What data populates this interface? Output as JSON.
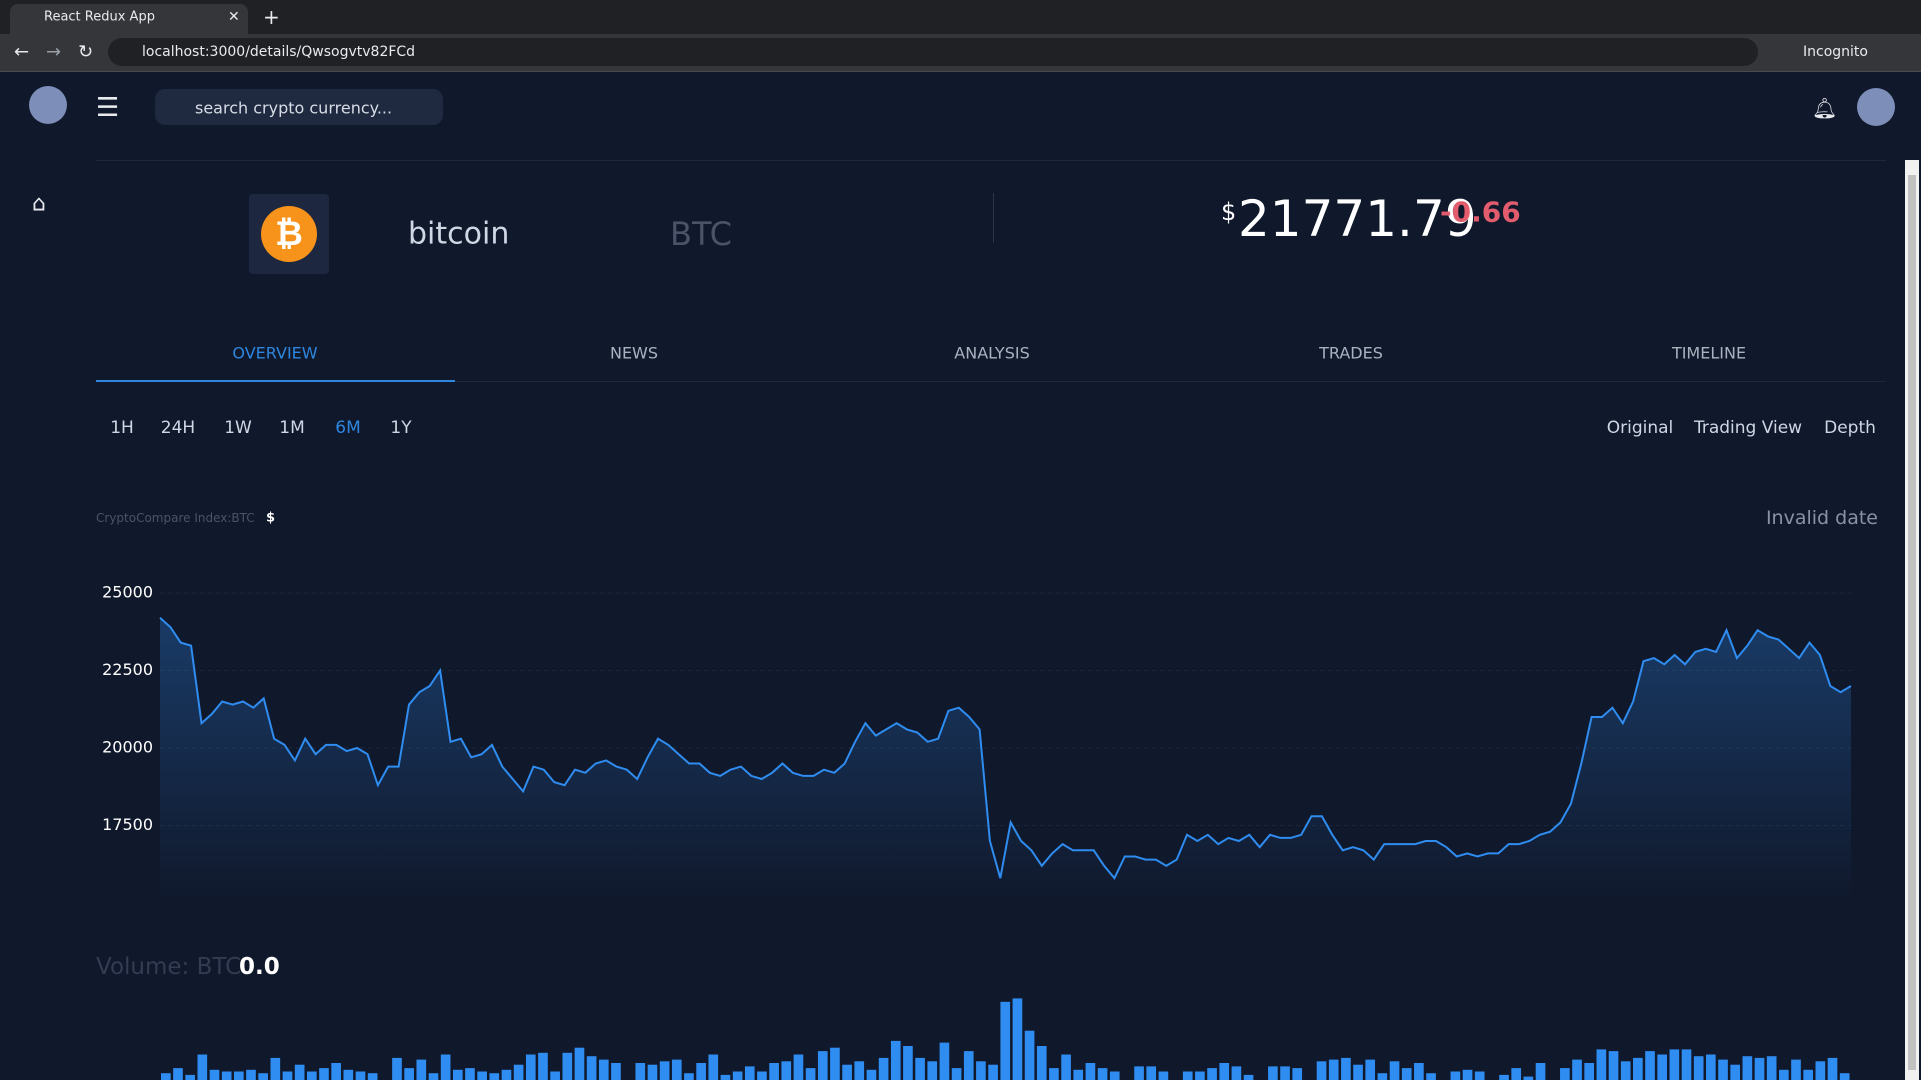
{
  "browser": {
    "tab_title": "React Redux App",
    "url": "localhost:3000/details/Qwsogvtv82FCd",
    "profile": "Incognito"
  },
  "header": {
    "search_placeholder": "search crypto currency..."
  },
  "coin": {
    "name": "bitcoin",
    "symbol": "BTC",
    "currency_sign": "$",
    "price": "21771.79",
    "change": "-0.66"
  },
  "tabs": [
    "OVERVIEW",
    "NEWS",
    "ANALYSIS",
    "TRADES",
    "TIMELINE"
  ],
  "ranges": [
    "1H",
    "24H",
    "1W",
    "1M",
    "6M",
    "1Y"
  ],
  "views": [
    "Original",
    "Trading View",
    "Depth"
  ],
  "chart_info": {
    "source": "CryptoCompare Index:BTC",
    "currency": "$",
    "date": "Invalid date"
  },
  "volume_info": {
    "label": "Volume: BTC",
    "value": "0.0"
  },
  "chart_data": [
    {
      "type": "area",
      "color": "#2f8cf0",
      "ylim": [
        15000,
        26000
      ],
      "yticks": [
        17500,
        20000,
        22500,
        25000
      ],
      "values": [
        24200,
        23900,
        23400,
        23300,
        20800,
        21100,
        21500,
        21400,
        21500,
        21300,
        21600,
        20300,
        20100,
        19600,
        20300,
        19800,
        20100,
        20100,
        19900,
        20000,
        19800,
        18800,
        19400,
        19400,
        21400,
        21800,
        22000,
        22500,
        20200,
        20300,
        19700,
        19800,
        20100,
        19400,
        19000,
        18600,
        19400,
        19300,
        18900,
        18800,
        19300,
        19200,
        19500,
        19600,
        19400,
        19300,
        19000,
        19700,
        20300,
        20100,
        19800,
        19500,
        19500,
        19200,
        19100,
        19300,
        19400,
        19100,
        19000,
        19200,
        19500,
        19200,
        19100,
        19100,
        19300,
        19200,
        19500,
        20200,
        20800,
        20400,
        20600,
        20800,
        20600,
        20500,
        20200,
        20300,
        21200,
        21300,
        21000,
        20600,
        17000,
        15800,
        17600,
        17000,
        16700,
        16200,
        16600,
        16900,
        16700,
        16700,
        16700,
        16200,
        15800,
        16500,
        16500,
        16400,
        16400,
        16200,
        16400,
        17200,
        17000,
        17200,
        16900,
        17100,
        17000,
        17200,
        16800,
        17200,
        17100,
        17100,
        17200,
        17800,
        17800,
        17200,
        16700,
        16800,
        16700,
        16400,
        16900,
        16900,
        16900,
        16900,
        17000,
        17000,
        16800,
        16500,
        16600,
        16500,
        16600,
        16600,
        16900,
        16900,
        17000,
        17200,
        17300,
        17600,
        18200,
        19500,
        21000,
        21000,
        21300,
        20800,
        21500,
        22800,
        22900,
        22700,
        23000,
        22700,
        23100,
        23200,
        23100,
        23800,
        22900,
        23300,
        23800,
        23600,
        23500,
        23200,
        22900,
        23400,
        23000,
        22000,
        21800,
        22000
      ]
    },
    {
      "type": "bar",
      "color": "#2f8cf0",
      "ylim": [
        0,
        100
      ],
      "values": [
        8,
        14,
        6,
        30,
        12,
        10,
        10,
        12,
        8,
        26,
        10,
        18,
        10,
        14,
        20,
        12,
        10,
        8,
        0,
        26,
        14,
        24,
        8,
        30,
        12,
        14,
        10,
        8,
        12,
        18,
        30,
        32,
        10,
        32,
        38,
        28,
        24,
        20,
        0,
        20,
        18,
        22,
        24,
        8,
        20,
        30,
        6,
        10,
        16,
        10,
        20,
        22,
        30,
        14,
        34,
        38,
        18,
        22,
        12,
        26,
        46,
        40,
        26,
        22,
        44,
        14,
        34,
        22,
        18,
        92,
        96,
        58,
        40,
        14,
        30,
        12,
        20,
        14,
        10,
        0,
        16,
        16,
        10,
        0,
        10,
        10,
        14,
        20,
        16,
        6,
        0,
        16,
        16,
        14,
        0,
        22,
        24,
        26,
        18,
        24,
        8,
        22,
        14,
        20,
        8,
        0,
        10,
        12,
        10,
        0,
        6,
        14,
        4,
        20,
        0,
        14,
        24,
        20,
        36,
        34,
        22,
        26,
        34,
        30,
        36,
        36,
        28,
        30,
        24,
        18,
        28,
        26,
        28,
        12,
        24,
        12,
        22,
        26,
        8
      ]
    }
  ]
}
